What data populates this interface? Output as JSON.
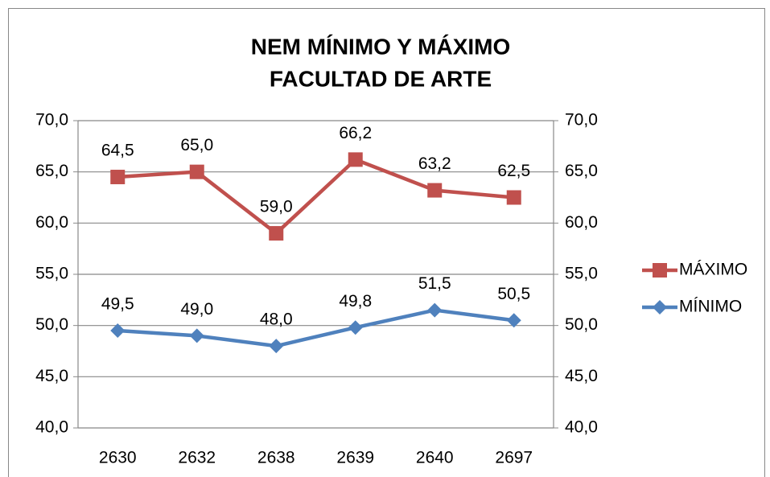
{
  "chart_data": {
    "type": "line",
    "title_lines": [
      "NEM MÍNIMO Y MÁXIMO",
      "FACULTAD DE ARTE"
    ],
    "categories": [
      "2630",
      "2632",
      "2638",
      "2639",
      "2640",
      "2697"
    ],
    "series": [
      {
        "name": "MÁXIMO",
        "color": "#c0504d",
        "marker": "square",
        "values": [
          64.5,
          65.0,
          59.0,
          66.2,
          63.2,
          62.5
        ],
        "value_labels": [
          "64,5",
          "65,0",
          "59,0",
          "66,2",
          "63,2",
          "62,5"
        ]
      },
      {
        "name": "MÍNIMO",
        "color": "#4f81bd",
        "marker": "diamond",
        "values": [
          49.5,
          49.0,
          48.0,
          49.8,
          51.5,
          50.5
        ],
        "value_labels": [
          "49,5",
          "49,0",
          "48,0",
          "49,8",
          "51,5",
          "50,5"
        ]
      }
    ],
    "ylim": [
      40,
      70
    ],
    "yticks": [
      {
        "value": 40,
        "label": "40,0"
      },
      {
        "value": 45,
        "label": "45,0"
      },
      {
        "value": 50,
        "label": "50,0"
      },
      {
        "value": 55,
        "label": "55,0"
      },
      {
        "value": 60,
        "label": "60,0"
      },
      {
        "value": 65,
        "label": "65,0"
      },
      {
        "value": 70,
        "label": "70,0"
      }
    ],
    "y2lim": [
      40,
      70
    ],
    "y2ticks": [
      {
        "value": 40,
        "label": "40,0"
      },
      {
        "value": 45,
        "label": "45,0"
      },
      {
        "value": 50,
        "label": "50,0"
      },
      {
        "value": 55,
        "label": "55,0"
      },
      {
        "value": 60,
        "label": "60,0"
      },
      {
        "value": 65,
        "label": "65,0"
      },
      {
        "value": 70,
        "label": "70,0"
      }
    ],
    "grid": true,
    "legend": "right"
  }
}
